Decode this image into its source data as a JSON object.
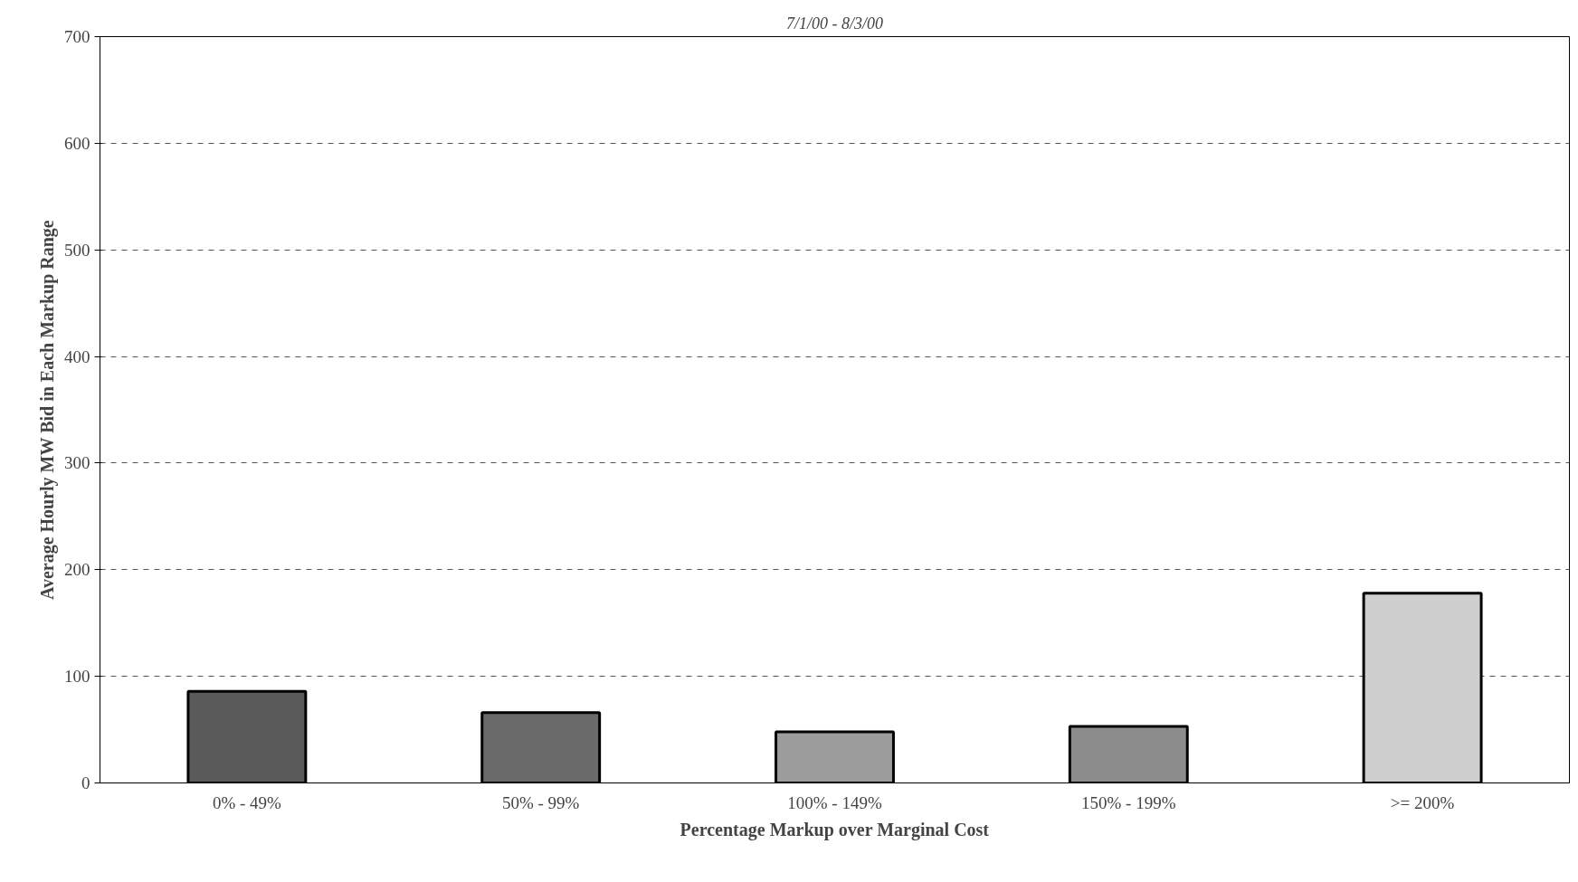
{
  "chart_data": {
    "type": "bar",
    "title": "7/1/00 - 8/3/00",
    "xlabel": "Percentage Markup over Marginal Cost",
    "ylabel": "Average Hourly MW Bid in Each Markup Range",
    "categories": [
      "0% - 49%",
      "50% - 99%",
      "100% - 149%",
      "150% - 199%",
      ">= 200%"
    ],
    "values": [
      86,
      66,
      48,
      53,
      178
    ],
    "colors": [
      "#5a5a5a",
      "#6a6a6a",
      "#9c9c9c",
      "#8c8c8c",
      "#cfcfcf"
    ],
    "ylim": [
      0,
      700
    ],
    "yticks": [
      0,
      100,
      200,
      300,
      400,
      500,
      600,
      700
    ],
    "grid": "y",
    "line_style": "dashed"
  }
}
